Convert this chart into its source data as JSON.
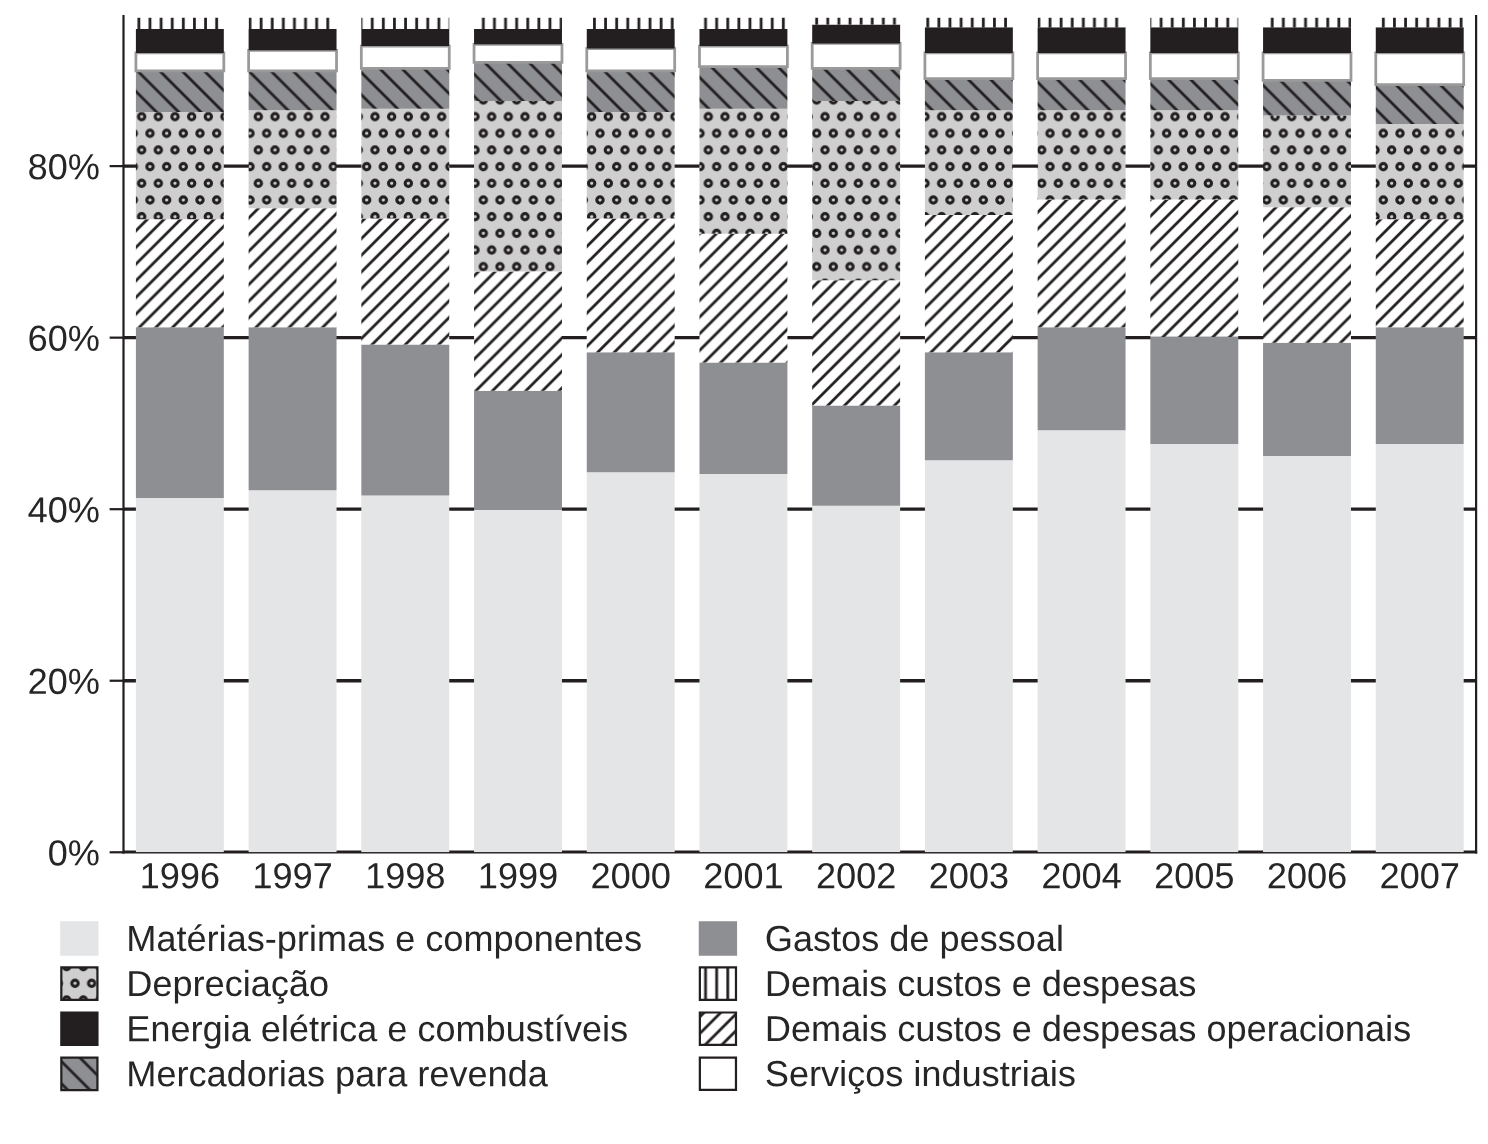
{
  "chart_data": {
    "type": "bar",
    "stacked": true,
    "categories": [
      "1996",
      "1997",
      "1998",
      "1999",
      "2000",
      "2001",
      "2002",
      "2003",
      "2004",
      "2005",
      "2006",
      "2007"
    ],
    "series": [
      {
        "name": "Matérias-primas e componentes",
        "color": "#e4e5e7",
        "values": [
          41.3,
          42.2,
          41.6,
          39.9,
          44.3,
          44.1,
          40.4,
          45.7,
          49.2,
          47.6,
          46.2,
          47.6
        ]
      },
      {
        "name": "Gastos de pessoal",
        "color": "#8e8f92",
        "values": [
          19.9,
          19.0,
          17.6,
          13.9,
          14.0,
          13.0,
          11.7,
          12.6,
          12.0,
          12.5,
          13.2,
          13.6
        ]
      },
      {
        "name": "Demais custos e despesas operacionais",
        "color": "#ffffff",
        "values": [
          12.6,
          13.9,
          14.7,
          13.9,
          15.6,
          15.0,
          14.6,
          16.0,
          14.9,
          16.0,
          15.8,
          12.6
        ]
      },
      {
        "name": "Depreciação",
        "color": "#cfcfcf",
        "values": [
          12.5,
          11.4,
          12.8,
          19.9,
          12.4,
          14.6,
          20.9,
          12.2,
          10.4,
          10.4,
          10.7,
          11.1
        ]
      },
      {
        "name": "Mercadorias para revenda",
        "color": "#8e8f92",
        "values": [
          4.8,
          4.6,
          4.7,
          4.5,
          4.8,
          4.9,
          3.8,
          3.7,
          3.7,
          3.7,
          4.1,
          4.6
        ]
      },
      {
        "name": "Serviços industriais",
        "color": "#ffffff",
        "values": [
          2.1,
          2.4,
          2.6,
          2.1,
          2.6,
          2.4,
          2.9,
          3.0,
          3.0,
          3.0,
          3.2,
          3.7
        ]
      },
      {
        "name": "Energia elétrica e combustíveis",
        "color": "#231f20",
        "values": [
          2.8,
          2.5,
          2.0,
          1.8,
          2.3,
          2.0,
          2.2,
          3.0,
          3.0,
          3.0,
          3.0,
          3.0
        ]
      },
      {
        "name": "Demais custos e despesas",
        "color": "#ffffff",
        "values": [
          1.3,
          1.3,
          1.3,
          1.3,
          1.3,
          1.3,
          0.8,
          1.1,
          1.1,
          1.1,
          1.1,
          1.1
        ]
      }
    ],
    "ylim": [
      0,
      97.5
    ],
    "yticks": [
      {
        "value": 0,
        "label": "0%"
      },
      {
        "value": 20,
        "label": "20%"
      },
      {
        "value": 40,
        "label": "40%"
      },
      {
        "value": 60,
        "label": "60%"
      },
      {
        "value": 80,
        "label": "80%"
      }
    ],
    "grid": "y",
    "legend": "bottom"
  }
}
